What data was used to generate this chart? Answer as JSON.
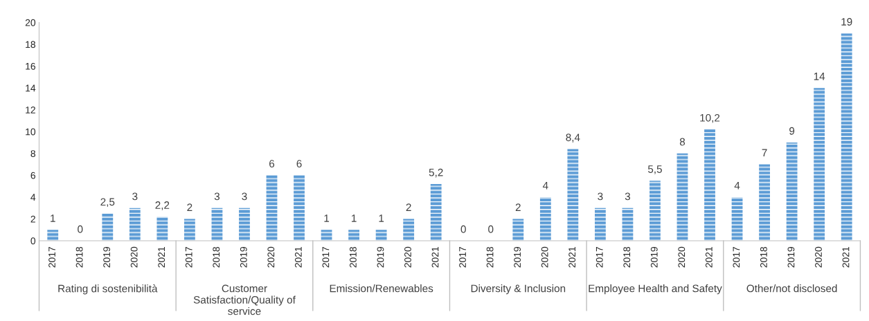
{
  "chart_data": {
    "type": "bar",
    "categories": [
      "2017",
      "2018",
      "2019",
      "2020",
      "2021",
      "2017",
      "2018",
      "2019",
      "2020",
      "2021",
      "2017",
      "2018",
      "2019",
      "2020",
      "2021",
      "2017",
      "2018",
      "2019",
      "2020",
      "2021",
      "2017",
      "2018",
      "2019",
      "2020",
      "2021",
      "2017",
      "2018",
      "2019",
      "2020",
      "2021"
    ],
    "values": [
      1,
      0,
      2.5,
      3,
      2.2,
      2,
      3,
      3,
      6,
      6,
      1,
      1,
      1,
      2,
      5.2,
      0,
      0,
      2,
      4,
      8.4,
      3,
      3,
      5.5,
      8,
      10.2,
      4,
      7,
      9,
      14,
      19
    ],
    "value_labels": [
      "1",
      "0",
      "2,5",
      "3",
      "2,2",
      "2",
      "3",
      "3",
      "6",
      "6",
      "1",
      "1",
      "1",
      "2",
      "5,2",
      "0",
      "0",
      "2",
      "4",
      "8,4",
      "3",
      "3",
      "5,5",
      "8",
      "10,2",
      "4",
      "7",
      "9",
      "14",
      "19"
    ],
    "color": "#5b9bd5",
    "ylim": [
      0,
      20
    ],
    "yticks": [
      0,
      2,
      4,
      6,
      8,
      10,
      12,
      14,
      16,
      18,
      20
    ],
    "grid": false,
    "legend": false,
    "annotations": [
      "Rating di sostenibilità",
      "Customer Satisfaction/Quality of service",
      "Emission/Renewables",
      "Diversity & Inclusion",
      "Employee Health and Safety",
      "Other/not disclosed"
    ]
  }
}
